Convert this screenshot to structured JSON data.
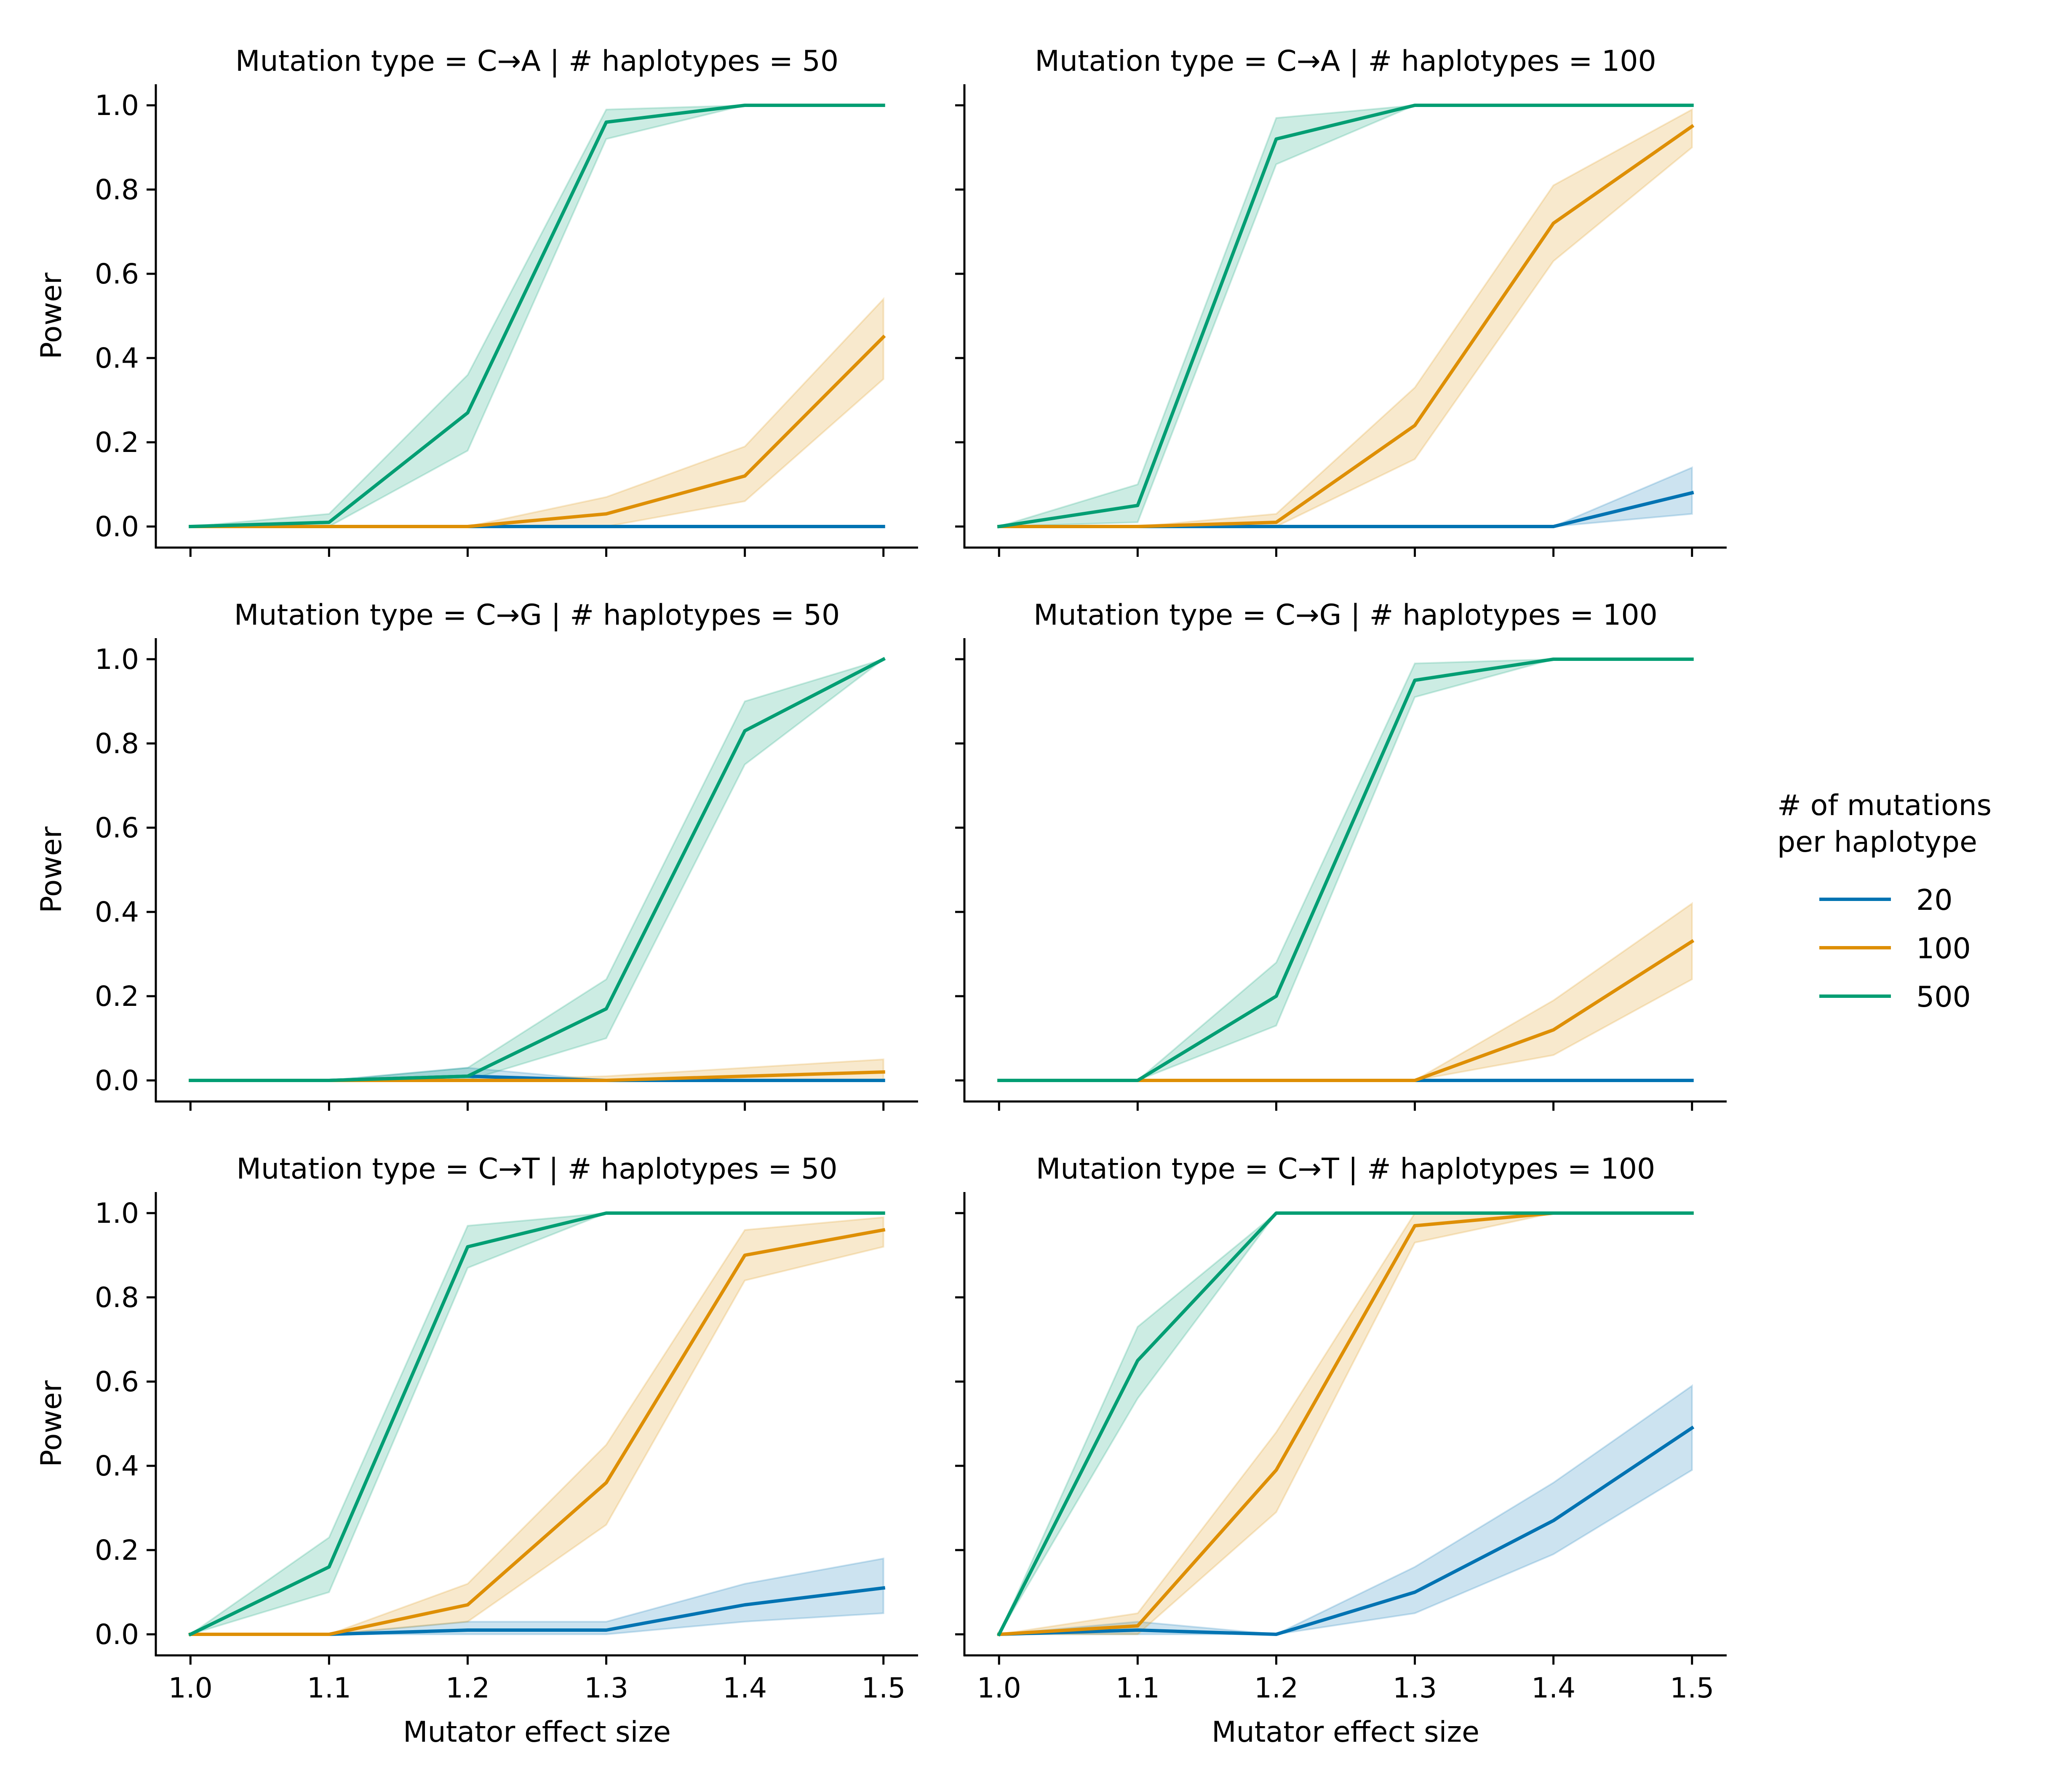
{
  "chart_data": {
    "type": "line",
    "xlabel": "Mutator effect size",
    "ylabel": "Power",
    "x": [
      1.0,
      1.1,
      1.2,
      1.3,
      1.4,
      1.5
    ],
    "x_tick_labels": [
      "1.0",
      "1.1",
      "1.2",
      "1.3",
      "1.4",
      "1.5"
    ],
    "xlim": [
      0.975,
      1.525
    ],
    "ylim": [
      -0.05,
      1.05
    ],
    "y_ticks": [
      0.0,
      0.2,
      0.4,
      0.6,
      0.8,
      1.0
    ],
    "y_tick_labels": [
      "0.0",
      "0.2",
      "0.4",
      "0.6",
      "0.8",
      "1.0"
    ],
    "legend": {
      "title_lines": [
        "# of mutations",
        "per haplotype"
      ],
      "position": "right",
      "entries": [
        {
          "label": "20",
          "color": "#0173b2"
        },
        {
          "label": "100",
          "color": "#de8f05"
        },
        {
          "label": "500",
          "color": "#029e73"
        }
      ]
    },
    "panels": [
      {
        "title": "Mutation type = C→A | # haplotypes = 50",
        "series": [
          {
            "name": "20",
            "color": "#0173b2",
            "values": [
              0,
              0,
              0,
              0,
              0,
              0
            ],
            "lower": [
              0,
              0,
              0,
              0,
              0,
              0
            ],
            "upper": [
              0,
              0,
              0,
              0,
              0,
              0
            ]
          },
          {
            "name": "100",
            "color": "#de8f05",
            "values": [
              0,
              0,
              0,
              0.03,
              0.12,
              0.45
            ],
            "lower": [
              0,
              0,
              0,
              0,
              0.06,
              0.35
            ],
            "upper": [
              0,
              0,
              0,
              0.07,
              0.19,
              0.54
            ]
          },
          {
            "name": "500",
            "color": "#029e73",
            "values": [
              0,
              0.01,
              0.27,
              0.96,
              1.0,
              1.0
            ],
            "lower": [
              0,
              0,
              0.18,
              0.92,
              1.0,
              1.0
            ],
            "upper": [
              0,
              0.03,
              0.36,
              0.99,
              1.0,
              1.0
            ]
          }
        ]
      },
      {
        "title": "Mutation type = C→A | # haplotypes = 100",
        "series": [
          {
            "name": "20",
            "color": "#0173b2",
            "values": [
              0,
              0,
              0,
              0,
              0,
              0.08
            ],
            "lower": [
              0,
              0,
              0,
              0,
              0,
              0.03
            ],
            "upper": [
              0,
              0,
              0,
              0,
              0,
              0.14
            ]
          },
          {
            "name": "100",
            "color": "#de8f05",
            "values": [
              0,
              0,
              0.01,
              0.24,
              0.72,
              0.95
            ],
            "lower": [
              0,
              0,
              0,
              0.16,
              0.63,
              0.9
            ],
            "upper": [
              0,
              0,
              0.03,
              0.33,
              0.81,
              0.99
            ]
          },
          {
            "name": "500",
            "color": "#029e73",
            "values": [
              0,
              0.05,
              0.92,
              1.0,
              1.0,
              1.0
            ],
            "lower": [
              0,
              0.01,
              0.86,
              1.0,
              1.0,
              1.0
            ],
            "upper": [
              0,
              0.1,
              0.97,
              1.0,
              1.0,
              1.0
            ]
          }
        ]
      },
      {
        "title": "Mutation type = C→G | # haplotypes = 50",
        "series": [
          {
            "name": "20",
            "color": "#0173b2",
            "values": [
              0,
              0,
              0.01,
              0,
              0,
              0
            ],
            "lower": [
              0,
              0,
              0,
              0,
              0,
              0
            ],
            "upper": [
              0,
              0,
              0.03,
              0,
              0,
              0
            ]
          },
          {
            "name": "100",
            "color": "#de8f05",
            "values": [
              0,
              0,
              0,
              0,
              0.01,
              0.02
            ],
            "lower": [
              0,
              0,
              0,
              0,
              0,
              0
            ],
            "upper": [
              0,
              0,
              0,
              0.01,
              0.03,
              0.05
            ]
          },
          {
            "name": "500",
            "color": "#029e73",
            "values": [
              0,
              0,
              0.01,
              0.17,
              0.83,
              1.0
            ],
            "lower": [
              0,
              0,
              0,
              0.1,
              0.75,
              1.0
            ],
            "upper": [
              0,
              0,
              0.03,
              0.24,
              0.9,
              1.0
            ]
          }
        ]
      },
      {
        "title": "Mutation type = C→G | # haplotypes = 100",
        "series": [
          {
            "name": "20",
            "color": "#0173b2",
            "values": [
              0,
              0,
              0,
              0,
              0,
              0
            ],
            "lower": [
              0,
              0,
              0,
              0,
              0,
              0
            ],
            "upper": [
              0,
              0,
              0,
              0,
              0,
              0
            ]
          },
          {
            "name": "100",
            "color": "#de8f05",
            "values": [
              0,
              0,
              0,
              0,
              0.12,
              0.33
            ],
            "lower": [
              0,
              0,
              0,
              0,
              0.06,
              0.24
            ],
            "upper": [
              0,
              0,
              0,
              0,
              0.19,
              0.42
            ]
          },
          {
            "name": "500",
            "color": "#029e73",
            "values": [
              0,
              0,
              0.2,
              0.95,
              1.0,
              1.0
            ],
            "lower": [
              0,
              0,
              0.13,
              0.91,
              1.0,
              1.0
            ],
            "upper": [
              0,
              0,
              0.28,
              0.99,
              1.0,
              1.0
            ]
          }
        ]
      },
      {
        "title": "Mutation type = C→T | # haplotypes = 50",
        "series": [
          {
            "name": "20",
            "color": "#0173b2",
            "values": [
              0,
              0,
              0.01,
              0.01,
              0.07,
              0.11
            ],
            "lower": [
              0,
              0,
              0,
              0,
              0.03,
              0.05
            ],
            "upper": [
              0,
              0,
              0.03,
              0.03,
              0.12,
              0.18
            ]
          },
          {
            "name": "100",
            "color": "#de8f05",
            "values": [
              0,
              0,
              0.07,
              0.36,
              0.9,
              0.96
            ],
            "lower": [
              0,
              0,
              0.03,
              0.26,
              0.84,
              0.92
            ],
            "upper": [
              0,
              0,
              0.12,
              0.45,
              0.96,
              0.99
            ]
          },
          {
            "name": "500",
            "color": "#029e73",
            "values": [
              0,
              0.16,
              0.92,
              1.0,
              1.0,
              1.0
            ],
            "lower": [
              0,
              0.1,
              0.87,
              1.0,
              1.0,
              1.0
            ],
            "upper": [
              0,
              0.23,
              0.97,
              1.0,
              1.0,
              1.0
            ]
          }
        ]
      },
      {
        "title": "Mutation type = C→T | # haplotypes = 100",
        "series": [
          {
            "name": "20",
            "color": "#0173b2",
            "values": [
              0,
              0.01,
              0,
              0.1,
              0.27,
              0.49
            ],
            "lower": [
              0,
              0,
              0,
              0.05,
              0.19,
              0.39
            ],
            "upper": [
              0,
              0.03,
              0,
              0.16,
              0.36,
              0.59
            ]
          },
          {
            "name": "100",
            "color": "#de8f05",
            "values": [
              0,
              0.02,
              0.39,
              0.97,
              1.0,
              1.0
            ],
            "lower": [
              0,
              0,
              0.29,
              0.93,
              1.0,
              1.0
            ],
            "upper": [
              0,
              0.05,
              0.48,
              1.0,
              1.0,
              1.0
            ]
          },
          {
            "name": "500",
            "color": "#029e73",
            "values": [
              0,
              0.65,
              1.0,
              1.0,
              1.0,
              1.0
            ],
            "lower": [
              0,
              0.56,
              1.0,
              1.0,
              1.0,
              1.0
            ],
            "upper": [
              0,
              0.73,
              1.0,
              1.0,
              1.0,
              1.0
            ]
          }
        ]
      }
    ]
  }
}
